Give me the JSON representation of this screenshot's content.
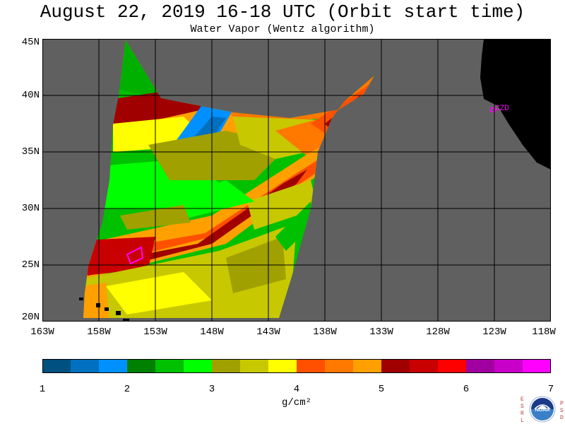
{
  "header": {
    "title": "August 22, 2019  16-18 UTC  (Orbit start time)",
    "subtitle": "Water Vapor (Wentz algorithm)"
  },
  "map": {
    "lat_labels": [
      "45N",
      "40N",
      "35N",
      "30N",
      "25N",
      "20N"
    ],
    "lon_labels": [
      "163W",
      "158W",
      "153W",
      "148W",
      "143W",
      "138W",
      "133W",
      "128W",
      "123W",
      "118W"
    ],
    "station_label": "CZD",
    "colors": {
      "no_data": "#606060",
      "land": "#000000",
      "grid": "#000000",
      "station": "#ff00ff"
    }
  },
  "colorbar": {
    "ticks": [
      "1",
      "2",
      "3",
      "4",
      "5",
      "6",
      "7"
    ],
    "units": "g/cm²",
    "colors": [
      "#005080",
      "#0070c0",
      "#0090ff",
      "#008000",
      "#00c000",
      "#00ff00",
      "#a0a000",
      "#c8c800",
      "#ffff00",
      "#ff5000",
      "#ff7800",
      "#ffa000",
      "#a00000",
      "#c80000",
      "#ff0000",
      "#a000a0",
      "#c800c8",
      "#ff00ff"
    ]
  },
  "logo": {
    "left_letters": "ESRL",
    "right_letters": "PSD",
    "agency": "NOAA"
  }
}
